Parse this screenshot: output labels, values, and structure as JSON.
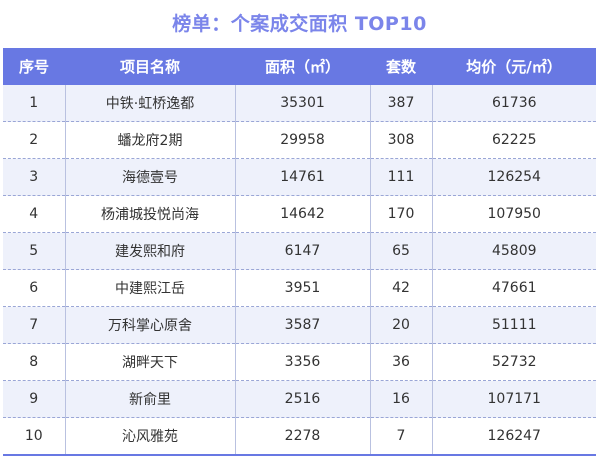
{
  "title": "榜单：个案成交面积 TOP10",
  "headers": {
    "rank": "序号",
    "project": "项目名称",
    "area": "面积（㎡）",
    "units": "套数",
    "price": "均价（元/㎡）"
  },
  "rows": [
    {
      "rank": "1",
      "project": "中铁·虹桥逸都",
      "area": "35301",
      "units": "387",
      "price": "61736"
    },
    {
      "rank": "2",
      "project": "蟠龙府2期",
      "area": "29958",
      "units": "308",
      "price": "62225"
    },
    {
      "rank": "3",
      "project": "海德壹号",
      "area": "14761",
      "units": "111",
      "price": "126254"
    },
    {
      "rank": "4",
      "project": "杨浦城投悦尚海",
      "area": "14642",
      "units": "170",
      "price": "107950"
    },
    {
      "rank": "5",
      "project": "建发熙和府",
      "area": "6147",
      "units": "65",
      "price": "45809"
    },
    {
      "rank": "6",
      "project": "中建熙江岳",
      "area": "3951",
      "units": "42",
      "price": "47661"
    },
    {
      "rank": "7",
      "project": "万科掌心原舍",
      "area": "3587",
      "units": "20",
      "price": "51111"
    },
    {
      "rank": "8",
      "project": "湖畔天下",
      "area": "3356",
      "units": "36",
      "price": "52732"
    },
    {
      "rank": "9",
      "project": "新俞里",
      "area": "2516",
      "units": "16",
      "price": "107171"
    },
    {
      "rank": "10",
      "project": "沁风雅苑",
      "area": "2278",
      "units": "7",
      "price": "126247"
    }
  ]
}
